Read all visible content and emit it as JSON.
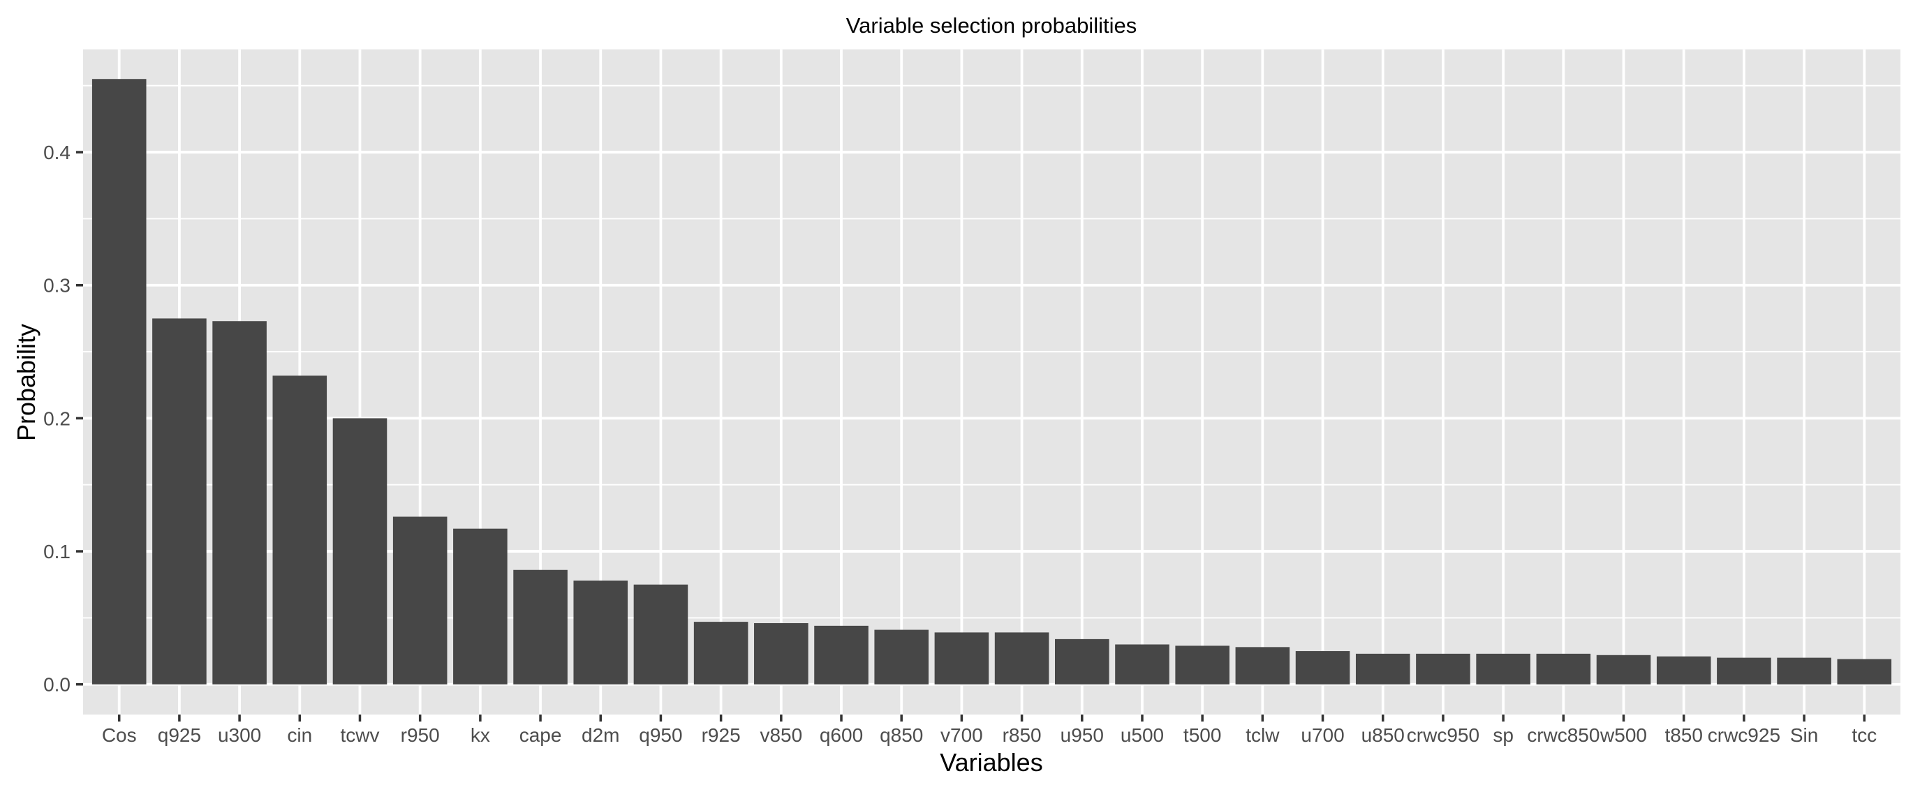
{
  "chart_data": {
    "type": "bar",
    "title": "Variable selection probabilities",
    "xlabel": "Variables",
    "ylabel": "Probability",
    "categories": [
      "Cos",
      "q925",
      "u300",
      "cin",
      "tcwv",
      "r950",
      "kx",
      "cape",
      "d2m",
      "q950",
      "r925",
      "v850",
      "q600",
      "q850",
      "v700",
      "r850",
      "u950",
      "u500",
      "t500",
      "tclw",
      "u700",
      "u850",
      "crwc950",
      "sp",
      "crwc850",
      "w500",
      "t850",
      "crwc925",
      "Sin",
      "tcc"
    ],
    "values": [
      0.455,
      0.275,
      0.273,
      0.232,
      0.2,
      0.126,
      0.117,
      0.086,
      0.078,
      0.075,
      0.047,
      0.046,
      0.044,
      0.041,
      0.039,
      0.039,
      0.034,
      0.03,
      0.029,
      0.028,
      0.025,
      0.023,
      0.023,
      0.023,
      0.023,
      0.022,
      0.021,
      0.02,
      0.02,
      0.019
    ],
    "ylim": [
      -0.0227,
      0.4773
    ],
    "yticks": [
      0.0,
      0.1,
      0.2,
      0.3,
      0.4
    ],
    "ytick_labels": [
      "0.0",
      "0.1",
      "0.2",
      "0.3",
      "0.4"
    ],
    "y_minor_ticks": [
      0.05,
      0.15,
      0.25,
      0.35,
      0.45
    ],
    "grid": true,
    "legend": "none",
    "colors": {
      "bar_fill": "#474747",
      "panel_background": "#E5E5E5",
      "grid": "#FFFFFF",
      "tick_label": "#4D4D4D",
      "tick_mark": "#333333",
      "title": "#000000"
    }
  }
}
